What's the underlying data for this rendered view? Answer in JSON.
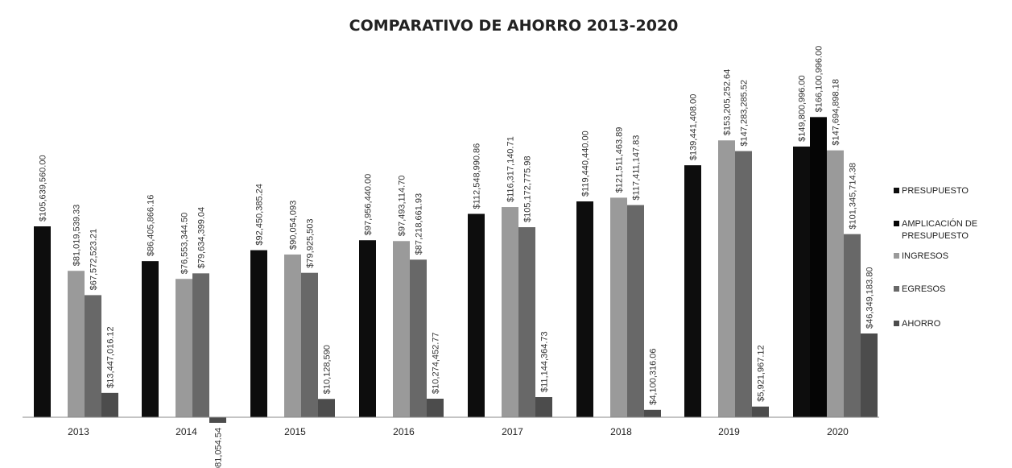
{
  "chart_data": {
    "type": "bar",
    "title": "COMPARATIVO DE AHORRO 2013-2020",
    "xlabel": "",
    "ylabel": "",
    "categories": [
      "2013",
      "2014",
      "2015",
      "2016",
      "2017",
      "2018",
      "2019",
      "2020"
    ],
    "legend_position": "right",
    "grid": false,
    "ylim": [
      -10000000,
      175000000
    ],
    "series": [
      {
        "name": "PRESUPUESTO",
        "color": "#0d0d0d",
        "values": [
          105639560.0,
          86405866.16,
          92450385.24,
          97956440.0,
          112548990.86,
          119440440.0,
          139441408.0,
          149800996.0
        ],
        "labels": [
          "$105,639,560.00",
          "$86,405,866.16",
          "$92,450,385.24",
          "$97,956,440.00",
          "$112,548,990.86",
          "$119,440,440.00",
          "$139,441,408.00",
          "$149,800,996.00"
        ]
      },
      {
        "name": "AMPLICACIÓN DE PRESUPUESTO",
        "color": "#050505",
        "values": [
          null,
          null,
          null,
          null,
          null,
          null,
          null,
          166100996.0
        ],
        "labels": [
          "",
          "",
          "",
          "",
          "",
          "",
          "",
          "$166,100,996.00"
        ]
      },
      {
        "name": "INGRESOS",
        "color": "#9a9a9a",
        "values": [
          81019539.33,
          76553344.5,
          90054093,
          97493114.7,
          116317140.71,
          121511463.89,
          153205252.64,
          147694898.18
        ],
        "labels": [
          "$81,019,539.33",
          "$76,553,344.50",
          "$90,054,093",
          "$97,493,114.70",
          "$116,317,140.71",
          "$121,511,463.89",
          "$153,205,252.64",
          "$147,694,898.18"
        ]
      },
      {
        "name": "EGRESOS",
        "color": "#686868",
        "values": [
          67572523.21,
          79634399.04,
          79925503,
          87218661.93,
          105172775.98,
          117411147.83,
          147283285.52,
          101345714.38
        ],
        "labels": [
          "$67,572,523.21",
          "$79,634,399.04",
          "$79,925,503",
          "$87,218,661.93",
          "$105,172,775.98",
          "$117,411,147.83",
          "$147,283,285.52",
          "$101,345,714.38"
        ]
      },
      {
        "name": "AHORRO",
        "color": "#4c4c4c",
        "values": [
          13447016.12,
          -3081054.54,
          10128590,
          10274452.77,
          11144364.73,
          4100316.06,
          5921967.12,
          46349183.8
        ],
        "labels": [
          "$13,447,016.12",
          "-$3,081,054.54",
          "$10,128,590",
          "$10,274,452.77",
          "$11,144,364.73",
          "$4,100,316.06",
          "$5,921,967.12",
          "$46,349,183.80"
        ]
      }
    ]
  }
}
